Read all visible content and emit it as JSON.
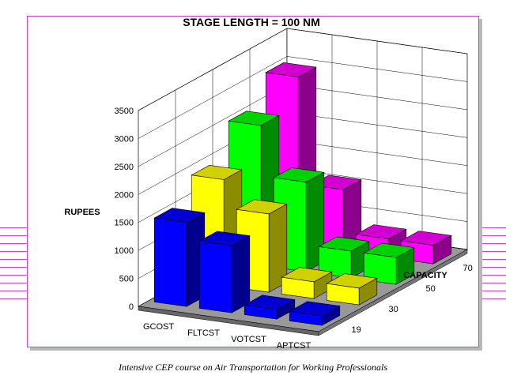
{
  "chart_data": {
    "type": "bar",
    "title": "STAGE LENGTH = 100 NM",
    "ylabel": "RUPEES",
    "depth_label": "CAPACITY",
    "categories": [
      "GCOST",
      "FLTCST",
      "VOTCST",
      "APTCST"
    ],
    "yticks": [
      0,
      500,
      1000,
      1500,
      2000,
      2500,
      3000,
      3500
    ],
    "ylim": [
      0,
      3500
    ],
    "grid": true,
    "series": [
      {
        "name": "19",
        "color": "#0000ff",
        "values": [
          1500,
          1200,
          170,
          170
        ]
      },
      {
        "name": "30",
        "color": "#ffff00",
        "values": [
          1900,
          1400,
          300,
          300
        ]
      },
      {
        "name": "50",
        "color": "#00ff00",
        "values": [
          2500,
          1600,
          480,
          480
        ]
      },
      {
        "name": "70",
        "color": "#ff00ff",
        "values": [
          3000,
          1100,
          330,
          330
        ]
      }
    ]
  },
  "footer": "Intensive CEP course on Air Transportation for Working  Professionals"
}
